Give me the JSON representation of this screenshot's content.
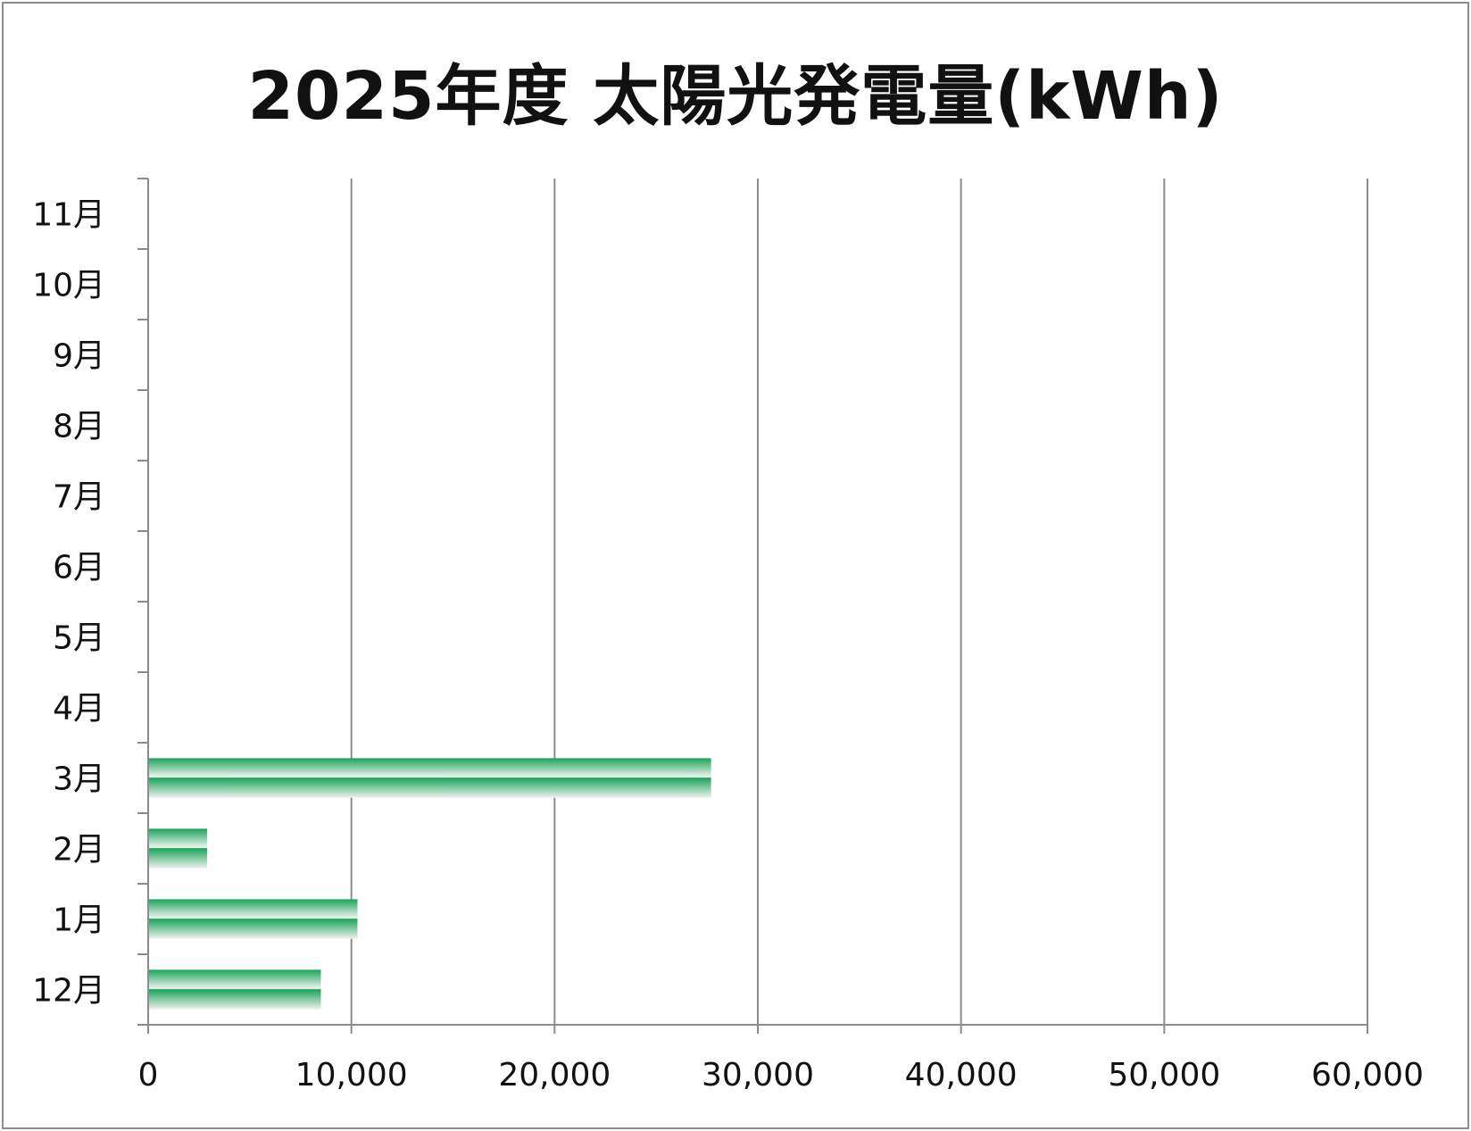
{
  "chart_data": {
    "type": "bar",
    "orientation": "horizontal",
    "title": "2025年度 太陽光発電量(kWh)",
    "categories": [
      "12月",
      "1月",
      "2月",
      "3月",
      "4月",
      "5月",
      "6月",
      "7月",
      "8月",
      "9月",
      "10月",
      "11月"
    ],
    "values": [
      8500,
      10300,
      2900,
      27700,
      null,
      null,
      null,
      null,
      null,
      null,
      null,
      null
    ],
    "xlim": [
      0,
      60000
    ],
    "xticks": [
      0,
      10000,
      20000,
      30000,
      40000,
      50000,
      60000
    ],
    "xtick_labels": [
      "0",
      "10,000",
      "20,000",
      "30,000",
      "40,000",
      "50,000",
      "60,000"
    ],
    "grid": "vertical",
    "legend": "none",
    "colors": {
      "bar_dark": "#1aa45a",
      "bar_light": "#f2f2f2",
      "grid": "#8c8c8c",
      "axis": "#8c8c8c"
    }
  }
}
